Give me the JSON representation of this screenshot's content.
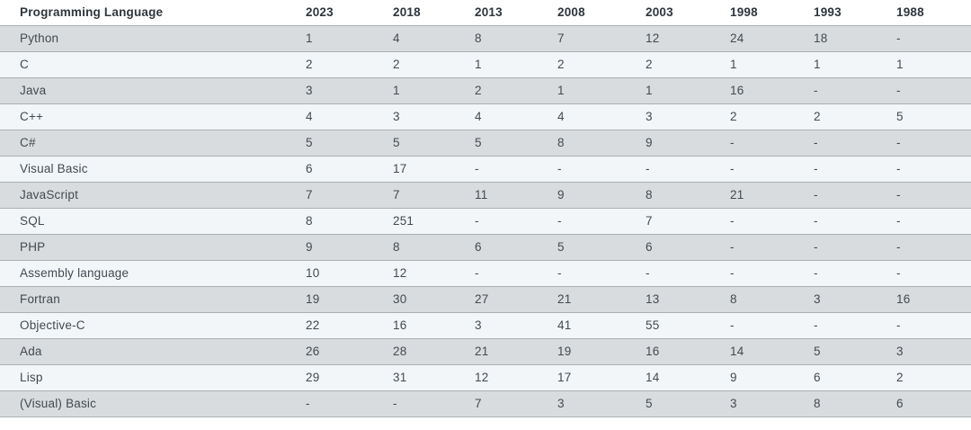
{
  "colors": {
    "header_bg": "#ffffff",
    "header_text": "#2e363d",
    "text": "#424a51",
    "stripe_dark": "#d9dcde",
    "stripe_light": "#f2f6f9",
    "border": "#a9afb3"
  },
  "chart_data": {
    "type": "table",
    "columns": [
      "Programming Language",
      "2023",
      "2018",
      "2013",
      "2008",
      "2003",
      "1998",
      "1993",
      "1988"
    ],
    "rows": [
      {
        "language": "Python",
        "ranks": [
          "1",
          "4",
          "8",
          "7",
          "12",
          "24",
          "18",
          "-"
        ]
      },
      {
        "language": "C",
        "ranks": [
          "2",
          "2",
          "1",
          "2",
          "2",
          "1",
          "1",
          "1"
        ]
      },
      {
        "language": "Java",
        "ranks": [
          "3",
          "1",
          "2",
          "1",
          "1",
          "16",
          "-",
          "-"
        ]
      },
      {
        "language": "C++",
        "ranks": [
          "4",
          "3",
          "4",
          "4",
          "3",
          "2",
          "2",
          "5"
        ]
      },
      {
        "language": "C#",
        "ranks": [
          "5",
          "5",
          "5",
          "8",
          "9",
          "-",
          "-",
          "-"
        ]
      },
      {
        "language": "Visual Basic",
        "ranks": [
          "6",
          "17",
          "-",
          "-",
          "-",
          "-",
          "-",
          "-"
        ]
      },
      {
        "language": "JavaScript",
        "ranks": [
          "7",
          "7",
          "11",
          "9",
          "8",
          "21",
          "-",
          "-"
        ]
      },
      {
        "language": "SQL",
        "ranks": [
          "8",
          "251",
          "-",
          "-",
          "7",
          "-",
          "-",
          "-"
        ]
      },
      {
        "language": "PHP",
        "ranks": [
          "9",
          "8",
          "6",
          "5",
          "6",
          "-",
          "-",
          "-"
        ]
      },
      {
        "language": "Assembly language",
        "ranks": [
          "10",
          "12",
          "-",
          "-",
          "-",
          "-",
          "-",
          "-"
        ]
      },
      {
        "language": "Fortran",
        "ranks": [
          "19",
          "30",
          "27",
          "21",
          "13",
          "8",
          "3",
          "16"
        ]
      },
      {
        "language": "Objective-C",
        "ranks": [
          "22",
          "16",
          "3",
          "41",
          "55",
          "-",
          "-",
          "-"
        ]
      },
      {
        "language": "Ada",
        "ranks": [
          "26",
          "28",
          "21",
          "19",
          "16",
          "14",
          "5",
          "3"
        ]
      },
      {
        "language": "Lisp",
        "ranks": [
          "29",
          "31",
          "12",
          "17",
          "14",
          "9",
          "6",
          "2"
        ]
      },
      {
        "language": "(Visual) Basic",
        "ranks": [
          "-",
          "-",
          "7",
          "3",
          "5",
          "3",
          "8",
          "6"
        ]
      }
    ]
  }
}
